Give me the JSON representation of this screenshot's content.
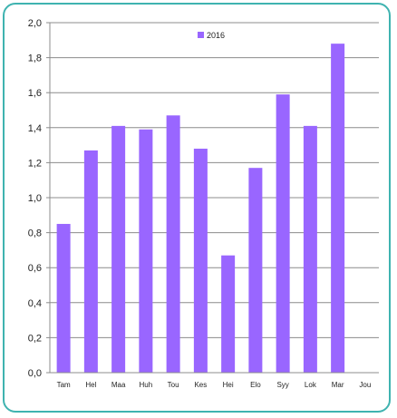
{
  "chart_data": {
    "type": "bar",
    "categories": [
      "Tam",
      "Hel",
      "Maa",
      "Huh",
      "Tou",
      "Kes",
      "Hei",
      "Elo",
      "Syy",
      "Lok",
      "Mar",
      "Jou"
    ],
    "series": [
      {
        "name": "2016",
        "values": [
          0.85,
          1.27,
          1.41,
          1.39,
          1.47,
          1.28,
          0.67,
          1.17,
          1.59,
          1.41,
          1.88,
          null
        ]
      }
    ],
    "ylim": [
      0,
      2.0
    ],
    "yticks": [
      "0,0",
      "0,2",
      "0,4",
      "0,6",
      "0,8",
      "1,0",
      "1,2",
      "1,4",
      "1,6",
      "1,8",
      "2,0"
    ],
    "grid": true,
    "legend_position": "top-center",
    "colors": {
      "bar": "#9966ff",
      "grid": "#8c8c8c",
      "frame": "#3fb3b0"
    }
  }
}
